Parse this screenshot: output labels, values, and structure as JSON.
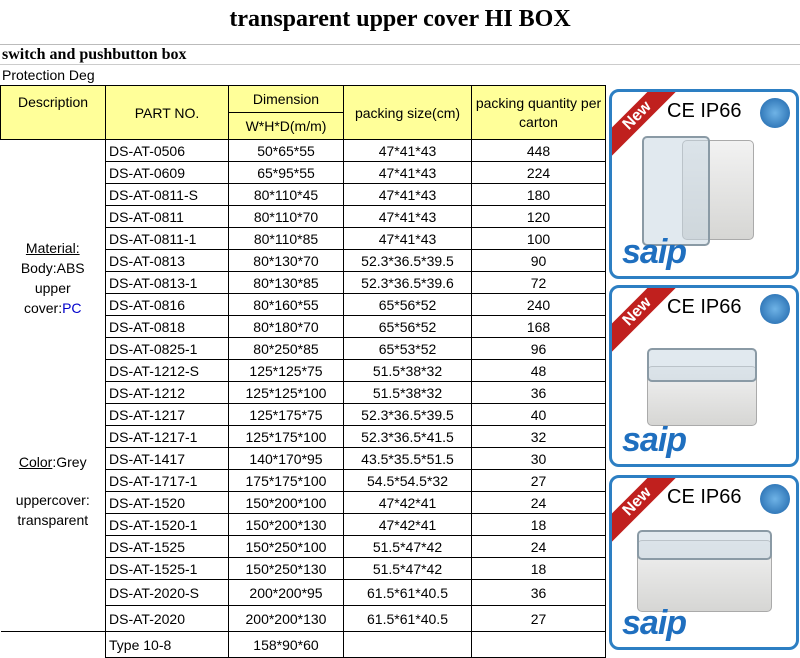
{
  "title": "transparent upper cover HI BOX",
  "subtitle": "switch and pushbutton box",
  "protection": "Protection Deg",
  "header": {
    "description": "Description",
    "part_no": "PART NO.",
    "dimension": "Dimension",
    "dimension_unit": "W*H*D(m/m)",
    "packing_size": "packing size(cm)",
    "packing_qty": "packing quantity per carton"
  },
  "description": {
    "material_label": "Material:",
    "body": "Body:ABS",
    "upper": "upper",
    "cover_prefix": "cover:",
    "cover_value": "PC",
    "color_label": "Color",
    "color_value": ":Grey",
    "uppercover": "uppercover:",
    "transparent": "transparent"
  },
  "rows": [
    [
      "DS-AT-0506",
      "50*65*55",
      "47*41*43",
      "448"
    ],
    [
      "DS-AT-0609",
      "65*95*55",
      "47*41*43",
      "224"
    ],
    [
      "DS-AT-0811-S",
      "80*110*45",
      "47*41*43",
      "180"
    ],
    [
      "DS-AT-0811",
      "80*110*70",
      "47*41*43",
      "120"
    ],
    [
      "DS-AT-0811-1",
      "80*110*85",
      "47*41*43",
      "100"
    ],
    [
      "DS-AT-0813",
      "80*130*70",
      "52.3*36.5*39.5",
      "90"
    ],
    [
      "DS-AT-0813-1",
      "80*130*85",
      "52.3*36.5*39.6",
      "72"
    ],
    [
      "DS-AT-0816",
      "80*160*55",
      "65*56*52",
      "240"
    ],
    [
      "DS-AT-0818",
      "80*180*70",
      "65*56*52",
      "168"
    ],
    [
      "DS-AT-0825-1",
      "80*250*85",
      "65*53*52",
      "96"
    ],
    [
      "DS-AT-1212-S",
      "125*125*75",
      "51.5*38*32",
      "48"
    ],
    [
      "DS-AT-1212",
      "125*125*100",
      "51.5*38*32",
      "36"
    ],
    [
      "DS-AT-1217",
      "125*175*75",
      "52.3*36.5*39.5",
      "40"
    ],
    [
      "DS-AT-1217-1",
      "125*175*100",
      "52.3*36.5*41.5",
      "32"
    ],
    [
      "DS-AT-1417",
      "140*170*95",
      "43.5*35.5*51.5",
      "30"
    ],
    [
      "DS-AT-1717-1",
      "175*175*100",
      "54.5*54.5*32",
      "27"
    ],
    [
      "DS-AT-1520",
      "150*200*100",
      "47*42*41",
      "24"
    ],
    [
      "DS-AT-1520-1",
      "150*200*130",
      "47*42*41",
      "18"
    ],
    [
      "DS-AT-1525",
      "150*250*100",
      "51.5*47*42",
      "24"
    ],
    [
      "DS-AT-1525-1",
      "150*250*130",
      "51.5*47*42",
      "18"
    ],
    [
      "DS-AT-2020-S",
      "200*200*95",
      "61.5*61*40.5",
      "36"
    ],
    [
      "DS-AT-2020",
      "200*200*130",
      "61.5*61*40.5",
      "27"
    ],
    [
      "Type 10-8",
      "158*90*60",
      "",
      ""
    ]
  ],
  "product_images": [
    {
      "ribbon": "New",
      "cert": "CE  IP66",
      "logo": "saip"
    },
    {
      "ribbon": "New",
      "cert": "CE  IP66",
      "logo": "saip"
    },
    {
      "ribbon": "New",
      "cert": "CE  IP66",
      "logo": "saip"
    }
  ],
  "colors": {
    "header_bg": "#ffff99",
    "panel_border": "#2d7fc3",
    "ribbon": "#c0201e",
    "logo": "#1f6fbf",
    "pc_text": "#0000cc"
  }
}
